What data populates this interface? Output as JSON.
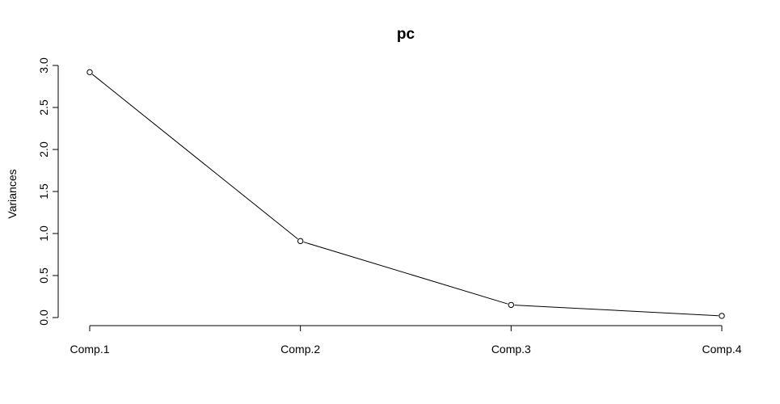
{
  "chart_data": {
    "type": "line",
    "title": "pc",
    "xlabel": "",
    "ylabel": "Variances",
    "categories": [
      "Comp.1",
      "Comp.2",
      "Comp.3",
      "Comp.4"
    ],
    "values": [
      2.92,
      0.91,
      0.15,
      0.02
    ],
    "yticks": [
      "0.0",
      "0.5",
      "1.0",
      "1.5",
      "2.0",
      "2.5",
      "3.0"
    ],
    "ylim": [
      0,
      3.0
    ],
    "grid": false,
    "markers": "open-circle",
    "line_color": "#000000"
  }
}
